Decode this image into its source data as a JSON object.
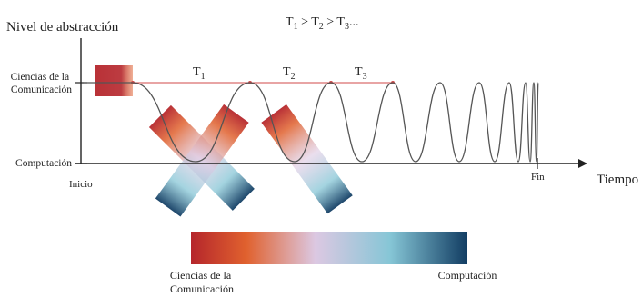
{
  "diagram": {
    "y_axis_title": "Nivel de abstracción",
    "x_axis_title": "Tiempo",
    "formula": {
      "parts": [
        "T",
        "1",
        " > T",
        "2",
        " > T",
        "3",
        "..."
      ]
    },
    "levels": {
      "high": [
        "Ciencias de la",
        "Comunicación"
      ],
      "low": "Computación"
    },
    "x_ticks": {
      "start": "Inicio",
      "end": "Fin"
    },
    "periods": [
      {
        "base": "T",
        "sub": "1"
      },
      {
        "base": "T",
        "sub": "2"
      },
      {
        "base": "T",
        "sub": "3"
      }
    ],
    "colors": {
      "comunicacion": "#b5262c",
      "orange": "#e0612e",
      "lavender": "#dcc8e2",
      "light_blue": "#86c6d6",
      "computacion": "#123d63",
      "period_line": "#d24a4a",
      "wave": "#555555",
      "axis": "#222222"
    }
  },
  "legend": {
    "left_label": [
      "Ciencias de la",
      "Comunicación"
    ],
    "right_label": "Computación"
  }
}
